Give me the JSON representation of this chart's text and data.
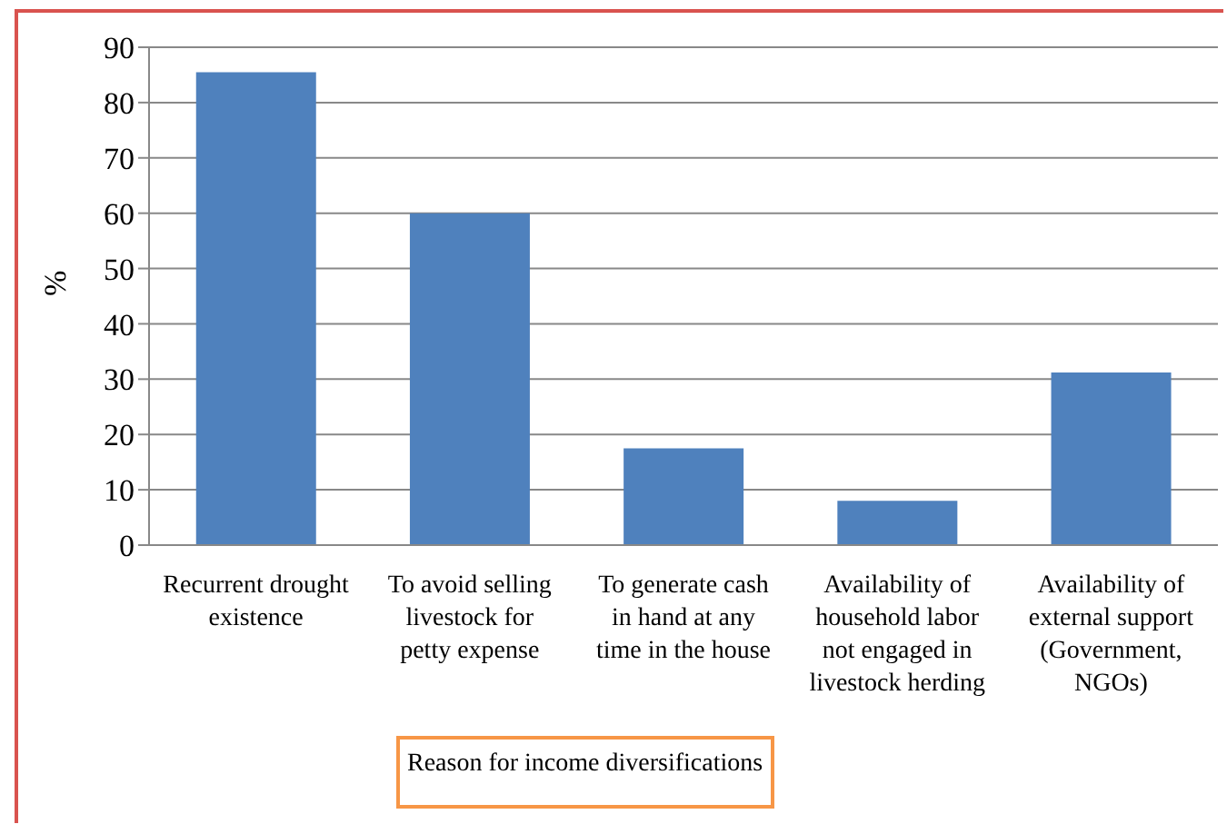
{
  "chart_data": {
    "type": "bar",
    "xlabel": "Reason for income diversifications",
    "ylabel": "%",
    "categories": [
      "Recurrent drought existence",
      "To avoid selling livestock for petty expense",
      "To generate cash in hand at any time in the house",
      "Availability of household labor not engaged in livestock herding",
      "Availability of external support (Government, NGOs)"
    ],
    "values": [
      85.5,
      60,
      17.5,
      8,
      31.2
    ],
    "color": "#4f81bd",
    "ylim": [
      0,
      90
    ],
    "yticks": [
      0,
      10,
      20,
      30,
      40,
      50,
      60,
      70,
      80,
      90
    ],
    "grid": "y",
    "legend": false
  }
}
